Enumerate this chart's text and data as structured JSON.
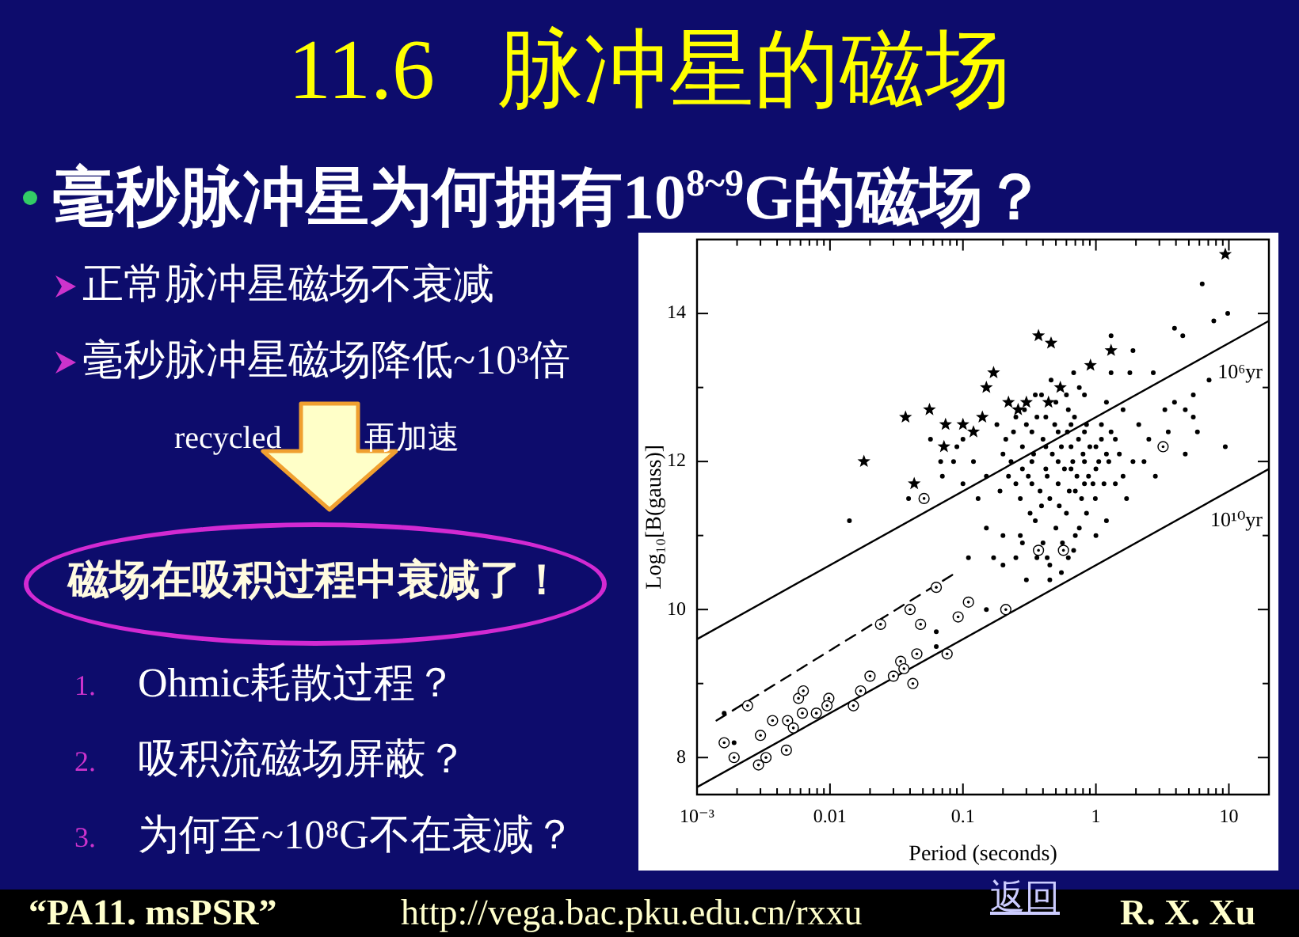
{
  "chart_data": {
    "type": "scatter",
    "title": "11.6 脉冲星的磁场",
    "subtitle": "毫秒脉冲星为何拥有10$^{8~9}$G的磁场？",
    "xlabel": "Period (seconds)",
    "ylabel": "Log₁₀[B(gauss)]",
    "annotations": [
      "正常脉冲星磁场不衰减",
      "毫秒脉冲星磁场降低~10³倍",
      "recycled",
      "再加速",
      "磁场在吸积过程中衰减了！",
      "1. Ohmic耗散过程？",
      "2. 吸积流磁场屏蔽？",
      "3. 为何至~10⁸G不在衰减？",
      "“PA11. msPSR”",
      "http://vega.bac.pku.edu.cn/rxxu",
      "返回",
      "R. X. Xu"
    ],
    "log": "x",
    "xlim": [
      0.001,
      20
    ],
    "ylim": [
      7.5,
      15
    ],
    "xticks": [
      {
        "value": 0.001,
        "label": "10⁻³"
      },
      {
        "value": 0.002,
        "label": null
      },
      {
        "value": 0.003,
        "label": null
      },
      {
        "value": 0.004,
        "label": null
      },
      {
        "value": 0.005,
        "label": null
      },
      {
        "value": 0.006,
        "label": null
      },
      {
        "value": 0.007,
        "label": null
      },
      {
        "value": 0.008,
        "label": null
      },
      {
        "value": 0.009,
        "label": null
      },
      0.01,
      {
        "value": 0.02,
        "label": null
      },
      {
        "value": 0.03,
        "label": null
      },
      {
        "value": 0.04,
        "label": null
      },
      {
        "value": 0.05,
        "label": null
      },
      {
        "value": 0.06,
        "label": null
      },
      {
        "value": 0.07,
        "label": null
      },
      {
        "value": 0.08,
        "label": null
      },
      {
        "value": 0.09,
        "label": null
      },
      0.1,
      {
        "value": 0.2,
        "label": null
      },
      {
        "value": 0.3,
        "label": null
      },
      {
        "value": 0.4,
        "label": null
      },
      {
        "value": 0.5,
        "label": null
      },
      {
        "value": 0.6,
        "label": null
      },
      {
        "value": 0.7,
        "label": null
      },
      {
        "value": 0.8,
        "label": null
      },
      {
        "value": 0.9,
        "label": null
      },
      1,
      {
        "value": 2,
        "label": null
      },
      {
        "value": 3,
        "label": null
      },
      {
        "value": 4,
        "label": null
      },
      {
        "value": 5,
        "label": null
      },
      {
        "value": 6,
        "label": null
      },
      {
        "value": 7,
        "label": null
      },
      {
        "value": 8,
        "label": null
      },
      {
        "value": 9,
        "label": null
      },
      10
    ],
    "yticks": [
      8,
      {
        "value": 9,
        "label": null
      },
      10,
      {
        "value": 11,
        "label": null
      },
      12,
      {
        "value": 13,
        "label": null
      },
      14
    ],
    "series": [
      {
        "color": "#000000",
        "marker": "circle",
        "x": [
          0.0016,
          0.0019,
          0.063,
          0.063,
          0.057,
          0.068,
          0.07,
          0.085,
          0.039,
          0.1,
          0.014,
          0.11,
          0.2,
          0.3,
          0.45,
          0.15,
          0.62,
          0.36,
          6.3,
          9.8,
          7.7,
          3.9,
          4.5,
          1.9,
          1.3,
          0.68,
          1.3,
          1.8,
          2.7,
          7.1,
          5.4,
          3.9,
          4.7,
          5.4,
          5.8,
          9.4,
          4.7,
          2.8,
          2.3,
          0.09,
          0.12,
          0.15,
          0.1,
          0.13,
          0.19,
          0.15,
          0.2,
          0.17,
          0.25,
          0.43,
          0.68,
          0.75,
          1.2,
          1.7,
          1.4,
          1.2,
          0.33,
          0.52,
          0.82,
          0.33,
          0.52,
          0.82,
          0.33,
          0.52,
          0.82,
          0.25,
          0.62,
          0.39,
          0.23,
          1.1,
          0.25,
          0.99,
          2.1,
          1.6,
          3.3,
          0.39,
          0.82,
          0.28,
          0.42,
          0.65,
          1.0,
          0.28,
          0.42,
          0.65,
          1.0,
          0.42,
          0.65,
          0.45,
          0.6,
          0.5,
          0.35,
          0.7,
          0.3,
          0.21,
          1.4,
          1.2,
          0.5,
          0.75,
          0.56,
          0.4,
          0.27,
          1.0,
          2.5,
          3.5,
          1.9,
          0.18,
          0.46,
          0.2,
          0.22,
          0.24,
          0.27,
          0.29,
          0.31,
          0.34,
          0.36,
          0.38,
          0.4,
          0.43,
          0.47,
          0.49,
          0.53,
          0.55,
          0.58,
          0.61,
          0.63,
          0.67,
          0.69,
          0.72,
          0.74,
          0.78,
          0.8,
          0.85,
          0.88,
          0.9,
          0.95,
          1.05,
          1.1,
          1.15,
          1.25,
          1.3,
          1.5,
          1.6,
          0.6,
          0.35,
          0.28,
          0.45,
          0.55,
          0.32,
          0.85,
          0.7
        ],
        "values": [
          8.6,
          8.2,
          9.7,
          9.5,
          12.3,
          12.0,
          11.8,
          12.0,
          11.5,
          12.3,
          11.2,
          10.7,
          10.6,
          10.4,
          10.4,
          10.0,
          10.7,
          10.7,
          14.4,
          14.0,
          13.9,
          13.8,
          13.7,
          13.5,
          13.7,
          13.2,
          13.2,
          13.2,
          13.2,
          13.1,
          12.9,
          12.8,
          12.7,
          12.6,
          12.4,
          12.2,
          12.1,
          11.8,
          12.0,
          12.2,
          12.0,
          11.8,
          11.7,
          11.5,
          11.6,
          11.1,
          11.0,
          10.7,
          10.7,
          10.7,
          10.8,
          11.1,
          11.2,
          11.5,
          11.7,
          12.1,
          12.4,
          12.4,
          12.4,
          12.0,
          12.0,
          12.0,
          11.7,
          11.7,
          11.7,
          12.6,
          12.7,
          11.4,
          12.0,
          12.5,
          11.7,
          11.5,
          12.5,
          12.7,
          12.7,
          12.9,
          12.9,
          12.2,
          12.2,
          12.2,
          12.2,
          11.9,
          11.9,
          11.9,
          11.9,
          12.6,
          12.5,
          11.5,
          11.3,
          11.1,
          11.2,
          11.6,
          12.5,
          12.3,
          12.3,
          12.8,
          12.8,
          13.0,
          10.9,
          10.9,
          11.0,
          11.0,
          12.3,
          12.4,
          12.0,
          12.5,
          13.1,
          12.1,
          11.8,
          12.4,
          11.5,
          12.7,
          11.8,
          12.1,
          12.6,
          11.6,
          12.3,
          11.8,
          12.1,
          12.5,
          11.4,
          12.2,
          11.9,
          12.4,
          11.6,
          12.0,
          12.6,
          11.8,
          12.3,
          11.5,
          12.1,
          12.5,
          11.8,
          12.2,
          11.7,
          12.0,
          12.3,
          11.7,
          12.0,
          12.4,
          12.1,
          11.8,
          12.9,
          12.9,
          10.9,
          10.6,
          10.5,
          11.3,
          11.3,
          11.0
        ]
      },
      {
        "color": "#000000",
        "marker": "star",
        "x": [
          0.018,
          0.043,
          0.037,
          0.056,
          0.074,
          0.072,
          0.1,
          0.12,
          9.4,
          0.37,
          0.46,
          1.3,
          0.91,
          0.17,
          0.15,
          0.22,
          0.3,
          0.54,
          0.44,
          0.26,
          0.14
        ],
        "values": [
          12.0,
          11.7,
          12.6,
          12.7,
          12.5,
          12.2,
          12.5,
          12.4,
          14.8,
          13.7,
          13.6,
          13.5,
          13.3,
          13.2,
          13.0,
          12.8,
          12.8,
          13.0,
          12.8,
          12.7,
          12.6
        ]
      },
      {
        "color": "#000000",
        "marker": "circle",
        "x": [
          0.0016,
          0.0019,
          0.0024,
          0.0029,
          0.0033,
          0.003,
          0.0037,
          0.0048,
          0.0047,
          0.0053,
          0.0058,
          0.0063,
          0.0062,
          0.0079,
          0.0098,
          0.0095,
          0.015,
          0.017,
          0.02,
          0.024,
          0.03,
          0.034,
          0.036,
          0.04,
          0.042,
          0.045,
          0.048,
          0.063,
          0.076,
          0.092,
          0.11,
          0.21,
          3.2,
          0.37,
          0.57,
          0.051
        ],
        "values": [
          8.2,
          8.0,
          8.7,
          7.9,
          8.0,
          8.3,
          8.5,
          8.5,
          8.1,
          8.4,
          8.8,
          8.9,
          8.6,
          8.6,
          8.8,
          8.7,
          8.7,
          8.9,
          9.1,
          9.8,
          9.1,
          9.3,
          9.2,
          10.0,
          9.0,
          9.4,
          9.8,
          10.3,
          9.4,
          9.9,
          10.1,
          10.0,
          12.2,
          10.8,
          10.8,
          11.5
        ]
      },
      {
        "type": "line",
        "name": "10⁶yr",
        "color": "#000000",
        "line_style": "solid",
        "x": [
          0.001,
          20
        ],
        "values": [
          9.6,
          13.9
        ]
      },
      {
        "type": "line",
        "name": "10¹⁰yr",
        "color": "#000000",
        "line_style": "solid",
        "x": [
          0.001,
          20
        ],
        "values": [
          7.6,
          11.9
        ]
      },
      {
        "type": "line",
        "color": "#000000",
        "line_style": "dashed",
        "x": [
          0.0014,
          0.089
        ],
        "values": [
          8.5,
          10.5
        ]
      }
    ]
  }
}
